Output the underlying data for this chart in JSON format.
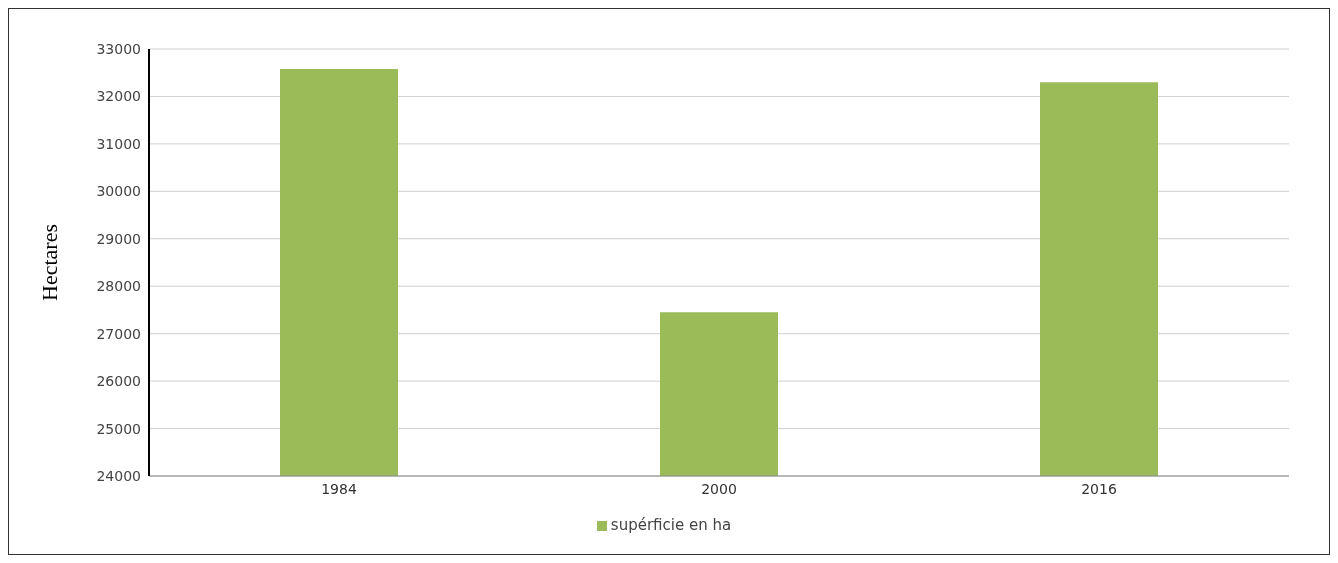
{
  "chart_data": {
    "type": "bar",
    "ylabel": "Hectares",
    "categories": [
      "1984",
      "2000",
      "2016"
    ],
    "series": [
      {
        "name": "supérficie en ha",
        "color": "#9bbb59",
        "values": [
          32580,
          27450,
          32300
        ]
      }
    ],
    "ylim": [
      24000,
      33000
    ],
    "yticks": [
      24000,
      25000,
      26000,
      27000,
      28000,
      29000,
      30000,
      31000,
      32000,
      33000
    ],
    "grid": "y",
    "legend": "bottom"
  }
}
